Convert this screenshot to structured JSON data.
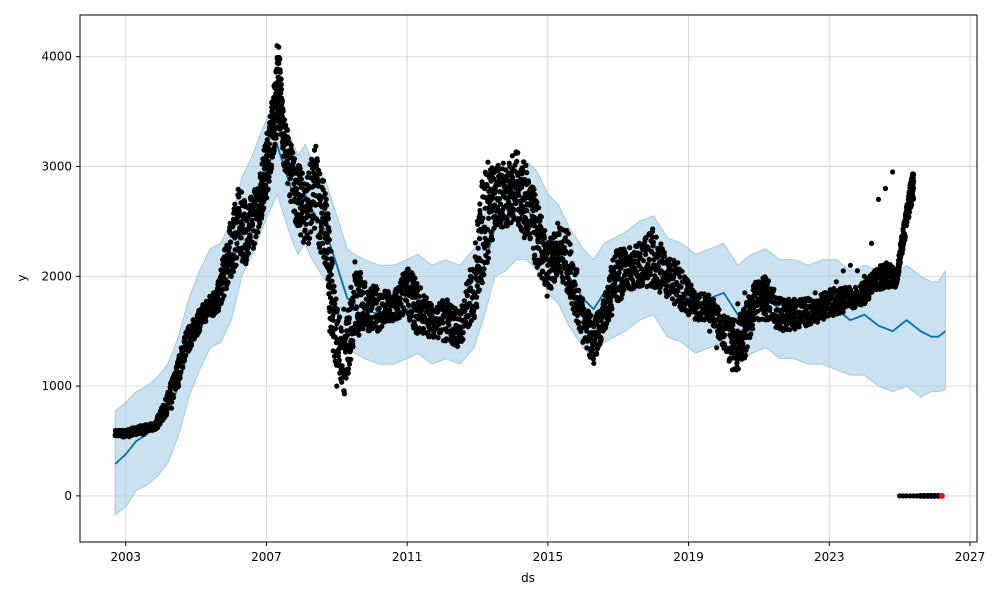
{
  "chart_data": {
    "type": "line",
    "title": "",
    "xlabel": "ds",
    "ylabel": "y",
    "xlim": [
      2001.7,
      2027.2
    ],
    "ylim": [
      -420,
      4380
    ],
    "grid": true,
    "legend": "none",
    "x_ticks": [
      2003,
      2007,
      2011,
      2015,
      2019,
      2023,
      2027
    ],
    "x_tick_labels": [
      "2003",
      "2007",
      "2011",
      "2015",
      "2019",
      "2023",
      "2027"
    ],
    "y_ticks": [
      0,
      1000,
      2000,
      3000,
      4000
    ],
    "y_tick_labels": [
      "0",
      "1000",
      "2000",
      "3000",
      "4000"
    ],
    "colors": {
      "observed": "#000000",
      "forecast": "#0072B2",
      "interval": "#9ecae1",
      "outlier": "#ff0000",
      "grid": "#d9d9d9"
    },
    "series": [
      {
        "role": "observed",
        "x": [
          2002.7,
          2002.9,
          2003.1,
          2003.3,
          2003.5,
          2003.7,
          2003.9,
          2004.1,
          2004.3,
          2004.5,
          2004.7,
          2004.9,
          2005.1,
          2005.3,
          2005.5,
          2005.7,
          2005.9,
          2006.1,
          2006.3,
          2006.5,
          2006.7,
          2006.9,
          2007.0,
          2007.1,
          2007.2,
          2007.3,
          2007.4,
          2007.5,
          2007.6,
          2007.8,
          2008.0,
          2008.2,
          2008.4,
          2008.6,
          2008.8,
          2009.0,
          2009.2,
          2009.4,
          2009.6,
          2009.8,
          2010.0,
          2010.2,
          2010.4,
          2010.6,
          2010.8,
          2011.0,
          2011.2,
          2011.4,
          2011.6,
          2011.8,
          2012.0,
          2012.2,
          2012.4,
          2012.6,
          2012.8,
          2013.0,
          2013.2,
          2013.4,
          2013.6,
          2013.8,
          2014.0,
          2014.2,
          2014.4,
          2014.6,
          2014.8,
          2015.0,
          2015.2,
          2015.4,
          2015.6,
          2015.8,
          2016.0,
          2016.2,
          2016.4,
          2016.6,
          2016.8,
          2017.0,
          2017.2,
          2017.4,
          2017.6,
          2017.8,
          2018.0,
          2018.2,
          2018.4,
          2018.6,
          2018.8,
          2019.0,
          2019.2,
          2019.4,
          2019.6,
          2019.8,
          2020.0,
          2020.2,
          2020.4,
          2020.6,
          2020.8,
          2021.0,
          2021.2,
          2021.4,
          2021.6,
          2021.8,
          2022.0,
          2022.2,
          2022.4,
          2022.6,
          2022.8,
          2023.0,
          2023.2,
          2023.4,
          2023.6,
          2023.8,
          2024.0,
          2024.2,
          2024.4,
          2024.6,
          2024.8,
          2025.0,
          2025.1,
          2025.2,
          2025.3,
          2025.4,
          2025.5,
          2025.6
        ],
        "y": [
          550,
          570,
          540,
          580,
          560,
          600,
          620,
          720,
          800,
          1000,
          1350,
          1450,
          1600,
          1700,
          1850,
          1750,
          2100,
          2350,
          2550,
          2300,
          2650,
          2800,
          3000,
          3300,
          3600,
          4100,
          3500,
          3300,
          3100,
          2700,
          2500,
          2800,
          2900,
          2300,
          1500,
          1000,
          1700,
          1900,
          1650,
          1700,
          1750,
          1800,
          1700,
          1650,
          1800,
          2000,
          1750,
          1650,
          1600,
          1550,
          1700,
          1600,
          1500,
          1700,
          2000,
          2500,
          2800,
          2700,
          2600,
          2800,
          2900,
          2800,
          2600,
          2400,
          2150,
          2100,
          2300,
          2150,
          1950,
          1700,
          1400,
          1450,
          1650,
          1700,
          2050,
          2000,
          2100,
          2200,
          2300,
          2050,
          1950,
          1900,
          1850,
          1750,
          1700,
          1650,
          1700,
          1750,
          1500,
          1350,
          1450,
          1600,
          1750,
          1850,
          1800,
          1750,
          1700,
          1650,
          1600,
          1650,
          1700,
          1750,
          1800,
          1850,
          1800,
          1850,
          1950,
          2050,
          2100,
          2050,
          2000,
          2300,
          2700,
          2800,
          2950,
          0,
          0,
          0,
          0,
          0,
          0,
          0
        ],
        "band": [
          [
            2002.7,
            550,
            600
          ],
          [
            2003.0,
            530,
            600
          ],
          [
            2003.4,
            570,
            640
          ],
          [
            2003.8,
            590,
            660
          ],
          [
            2004.1,
            700,
            850
          ],
          [
            2004.4,
            900,
            1150
          ],
          [
            2004.7,
            1250,
            1500
          ],
          [
            2005.0,
            1450,
            1650
          ],
          [
            2005.3,
            1600,
            1800
          ],
          [
            2005.6,
            1650,
            1900
          ],
          [
            2005.9,
            1900,
            2400
          ],
          [
            2006.2,
            2150,
            2800
          ],
          [
            2006.5,
            2100,
            2700
          ],
          [
            2006.8,
            2450,
            2900
          ],
          [
            2007.0,
            2700,
            3300
          ],
          [
            2007.2,
            3100,
            3700
          ],
          [
            2007.35,
            3400,
            4150
          ],
          [
            2007.5,
            3000,
            3450
          ],
          [
            2007.8,
            2500,
            3100
          ],
          [
            2008.1,
            2250,
            2900
          ],
          [
            2008.4,
            2400,
            3200
          ],
          [
            2008.7,
            2000,
            2800
          ],
          [
            2008.9,
            1300,
            2000
          ],
          [
            2009.2,
            900,
            1400
          ],
          [
            2009.5,
            1400,
            2200
          ],
          [
            2009.8,
            1500,
            1950
          ],
          [
            2010.2,
            1500,
            1900
          ],
          [
            2010.6,
            1550,
            1850
          ],
          [
            2011.0,
            1650,
            2100
          ],
          [
            2011.3,
            1450,
            1950
          ],
          [
            2011.7,
            1450,
            1750
          ],
          [
            2012.1,
            1400,
            1800
          ],
          [
            2012.5,
            1350,
            1700
          ],
          [
            2012.9,
            1600,
            2200
          ],
          [
            2013.2,
            2000,
            3100
          ],
          [
            2013.5,
            2400,
            3000
          ],
          [
            2013.8,
            2450,
            3050
          ],
          [
            2014.1,
            2500,
            3150
          ],
          [
            2014.4,
            2300,
            3000
          ],
          [
            2014.7,
            2050,
            2700
          ],
          [
            2015.0,
            1800,
            2300
          ],
          [
            2015.3,
            2050,
            2500
          ],
          [
            2015.6,
            1800,
            2400
          ],
          [
            2016.0,
            1400,
            1800
          ],
          [
            2016.3,
            1200,
            1600
          ],
          [
            2016.6,
            1500,
            1800
          ],
          [
            2016.9,
            1700,
            2250
          ],
          [
            2017.2,
            1850,
            2250
          ],
          [
            2017.6,
            1900,
            2300
          ],
          [
            2018.0,
            1900,
            2450
          ],
          [
            2018.4,
            1800,
            2200
          ],
          [
            2018.8,
            1700,
            2100
          ],
          [
            2019.2,
            1600,
            1850
          ],
          [
            2019.6,
            1600,
            1850
          ],
          [
            2020.0,
            1350,
            1650
          ],
          [
            2020.3,
            1100,
            1600
          ],
          [
            2020.6,
            1250,
            1750
          ],
          [
            2020.9,
            1600,
            1950
          ],
          [
            2021.2,
            1600,
            2000
          ],
          [
            2021.6,
            1500,
            1800
          ],
          [
            2022.0,
            1500,
            1800
          ],
          [
            2022.4,
            1550,
            1800
          ],
          [
            2022.8,
            1600,
            1850
          ],
          [
            2023.2,
            1650,
            1900
          ],
          [
            2023.6,
            1700,
            1900
          ],
          [
            2024.0,
            1750,
            1950
          ],
          [
            2024.3,
            1850,
            2050
          ],
          [
            2024.6,
            1900,
            2150
          ],
          [
            2024.9,
            1900,
            2050
          ],
          [
            2025.1,
            2250,
            2450
          ],
          [
            2025.3,
            2600,
            2850
          ],
          [
            2025.4,
            2700,
            2970
          ]
        ]
      },
      {
        "role": "forecast",
        "x": [
          2002.7,
          2003.0,
          2003.3,
          2003.6,
          2003.9,
          2004.2,
          2004.5,
          2004.8,
          2005.1,
          2005.4,
          2005.7,
          2006.0,
          2006.3,
          2006.6,
          2006.9,
          2007.1,
          2007.3,
          2007.5,
          2007.7,
          2007.9,
          2008.1,
          2008.3,
          2008.5,
          2008.7,
          2008.9,
          2009.1,
          2009.3,
          2009.5,
          2009.8,
          2010.2,
          2010.6,
          2011.0,
          2011.3,
          2011.7,
          2012.1,
          2012.5,
          2012.9,
          2013.2,
          2013.5,
          2013.8,
          2014.1,
          2014.4,
          2014.7,
          2015.0,
          2015.3,
          2015.6,
          2016.0,
          2016.3,
          2016.6,
          2016.9,
          2017.2,
          2017.6,
          2018.0,
          2018.4,
          2018.8,
          2019.2,
          2019.6,
          2020.0,
          2020.4,
          2020.8,
          2021.2,
          2021.6,
          2022.0,
          2022.4,
          2022.8,
          2023.2,
          2023.6,
          2024.0,
          2024.4,
          2024.8,
          2025.2,
          2025.6,
          2025.9,
          2026.1,
          2026.3
        ],
        "y": [
          290,
          380,
          500,
          560,
          640,
          760,
          1000,
          1350,
          1600,
          1800,
          1850,
          2050,
          2450,
          2650,
          2900,
          3050,
          3200,
          3000,
          2800,
          2650,
          2750,
          2600,
          2500,
          2400,
          2200,
          2000,
          1800,
          1750,
          1700,
          1650,
          1650,
          1700,
          1750,
          1650,
          1700,
          1650,
          1800,
          2100,
          2450,
          2500,
          2600,
          2600,
          2500,
          2300,
          2200,
          2000,
          1800,
          1700,
          1850,
          1900,
          1950,
          2050,
          2100,
          1900,
          1850,
          1750,
          1800,
          1850,
          1650,
          1750,
          1800,
          1700,
          1700,
          1650,
          1700,
          1700,
          1600,
          1650,
          1550,
          1500,
          1600,
          1500,
          1450,
          1450,
          1500
        ],
        "lower": [
          -170,
          -100,
          50,
          100,
          180,
          300,
          550,
          900,
          1150,
          1350,
          1400,
          1600,
          2000,
          2200,
          2450,
          2600,
          2750,
          2550,
          2350,
          2200,
          2300,
          2150,
          2050,
          1950,
          1750,
          1550,
          1350,
          1300,
          1250,
          1200,
          1200,
          1250,
          1300,
          1200,
          1250,
          1200,
          1350,
          1650,
          2000,
          2050,
          2150,
          2150,
          2050,
          1850,
          1750,
          1550,
          1350,
          1250,
          1400,
          1450,
          1500,
          1600,
          1650,
          1450,
          1400,
          1300,
          1350,
          1400,
          1200,
          1300,
          1350,
          1250,
          1250,
          1200,
          1200,
          1150,
          1100,
          1100,
          1000,
          950,
          1000,
          900,
          950,
          950,
          970
        ],
        "upper": [
          770,
          850,
          950,
          1000,
          1080,
          1200,
          1450,
          1800,
          2050,
          2250,
          2300,
          2500,
          2900,
          3100,
          3350,
          3500,
          3600,
          3450,
          3250,
          3100,
          3200,
          3050,
          2950,
          2850,
          2650,
          2450,
          2250,
          2200,
          2150,
          2100,
          2100,
          2150,
          2200,
          2100,
          2150,
          2100,
          2250,
          2550,
          2900,
          2950,
          3050,
          3050,
          2950,
          2750,
          2650,
          2450,
          2250,
          2150,
          2300,
          2350,
          2400,
          2500,
          2550,
          2350,
          2300,
          2200,
          2250,
          2300,
          2100,
          2200,
          2250,
          2150,
          2150,
          2100,
          2150,
          2150,
          2050,
          2100,
          2050,
          2000,
          2100,
          2000,
          1950,
          1950,
          2050
        ]
      },
      {
        "role": "outlier",
        "x": [
          2025.6,
          2025.7,
          2025.8,
          2025.9,
          2026.0,
          2026.1,
          2026.2
        ],
        "y": [
          0,
          0,
          0,
          0,
          0,
          0,
          0
        ]
      }
    ]
  }
}
